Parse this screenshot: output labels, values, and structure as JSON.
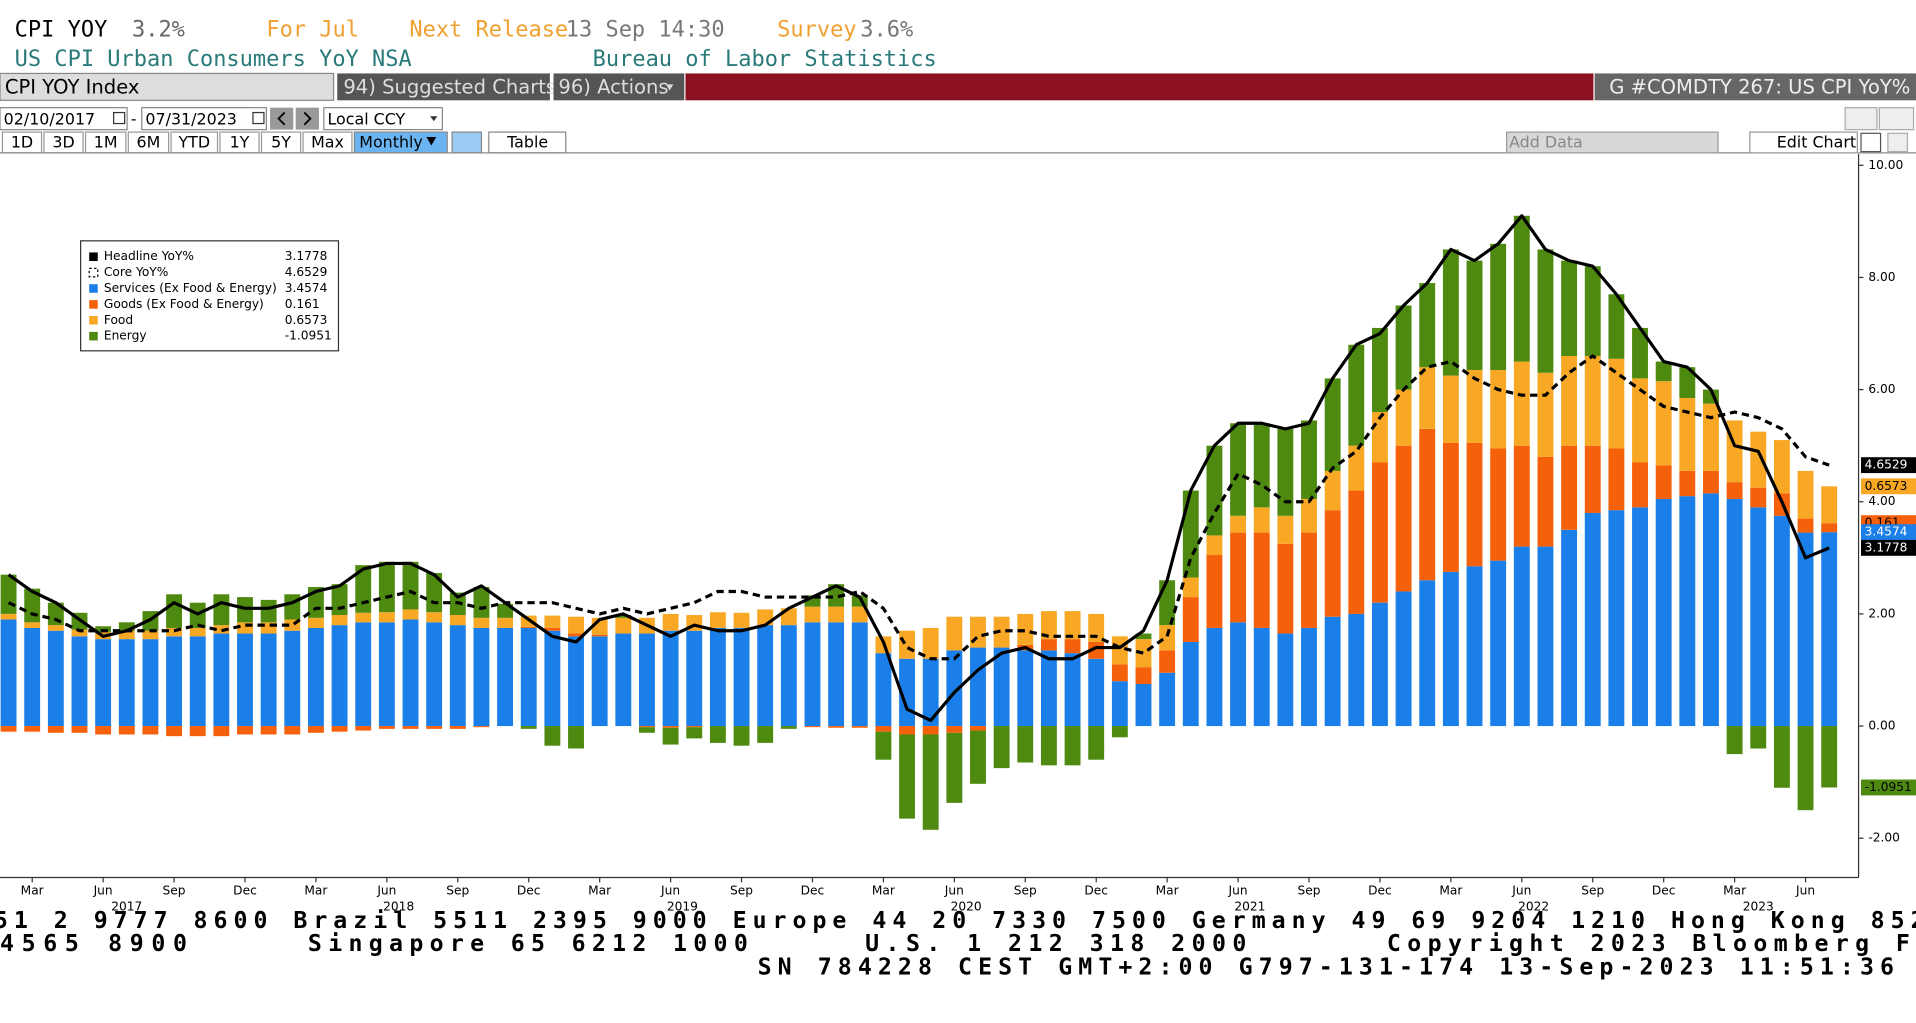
{
  "header": {
    "ticker": "CPI YOY",
    "value": "3.2%",
    "period": "For Jul",
    "next_release_label": "Next Release",
    "next_release": "13 Sep 14:30",
    "survey_label": "Survey",
    "survey": "3.6%",
    "subtitle": "US CPI Urban Consumers YoY NSA",
    "source": "Bureau of Labor Statistics"
  },
  "toolbar": {
    "security": "CPI YOY Index",
    "suggested": "94) Suggested Charts",
    "actions": "96) Actions",
    "chart_code": "G #COMDTY 267: US CPI YoY%",
    "start_date": "02/10/2017",
    "end_date": "07/31/2023",
    "currency": "Local CCY",
    "ranges": [
      "1D",
      "3D",
      "1M",
      "6M",
      "YTD",
      "1Y",
      "5Y",
      "Max"
    ],
    "frequency": "Monthly",
    "table": "Table",
    "add_data": "Add Data",
    "edit_chart": "Edit Chart"
  },
  "chart_data": {
    "type": "bar",
    "stacked": true,
    "legend": "upper left",
    "categories": [
      null,
      "Mar",
      null,
      null,
      "Jun",
      null,
      null,
      "Sep",
      null,
      null,
      "Dec",
      null,
      null,
      "Mar",
      null,
      null,
      "Jun",
      null,
      null,
      "Sep",
      null,
      null,
      "Dec",
      null,
      null,
      "Mar",
      null,
      null,
      "Jun",
      null,
      null,
      "Sep",
      null,
      null,
      "Dec",
      null,
      null,
      "Mar",
      null,
      null,
      "Jun",
      null,
      null,
      "Sep",
      null,
      null,
      "Dec",
      null,
      null,
      "Mar",
      null,
      null,
      "Jun",
      null,
      null,
      "Sep",
      null,
      null,
      "Dec",
      null,
      null,
      "Mar",
      null,
      null,
      "Jun",
      null,
      null,
      "Sep",
      null,
      null,
      "Dec",
      null,
      null,
      "Mar",
      null,
      null,
      "Jun",
      null
    ],
    "years": [
      2017,
      2018,
      2019,
      2020,
      2021,
      2022,
      2023
    ],
    "ylim": [
      -2.7,
      10.2
    ],
    "yticks": [
      {
        "value": -2,
        "label": "-2.00"
      },
      {
        "value": 0,
        "label": "0.00"
      },
      {
        "value": 2,
        "label": "2.00"
      },
      {
        "value": 4,
        "label": "4.00"
      },
      {
        "value": 6,
        "label": "6.00"
      },
      {
        "value": 8,
        "label": "8.00"
      },
      {
        "value": 10,
        "label": "10.00"
      }
    ],
    "series": [
      {
        "name": "Headline YoY%",
        "type": "line",
        "color": "#000000",
        "style": "solid",
        "values": [
          2.7,
          2.4,
          2.2,
          1.9,
          1.6,
          1.7,
          1.9,
          2.2,
          2.0,
          2.2,
          2.1,
          2.1,
          2.2,
          2.4,
          2.5,
          2.8,
          2.9,
          2.9,
          2.7,
          2.3,
          2.5,
          2.2,
          1.9,
          1.6,
          1.5,
          1.9,
          2.0,
          1.8,
          1.6,
          1.8,
          1.7,
          1.7,
          1.8,
          2.1,
          2.3,
          2.5,
          2.3,
          1.5,
          0.3,
          0.1,
          0.6,
          1.0,
          1.3,
          1.4,
          1.2,
          1.2,
          1.4,
          1.4,
          1.7,
          2.6,
          4.2,
          5.0,
          5.4,
          5.4,
          5.3,
          5.4,
          6.2,
          6.8,
          7.0,
          7.5,
          7.9,
          8.5,
          8.3,
          8.6,
          9.1,
          8.5,
          8.3,
          8.2,
          7.7,
          7.1,
          6.5,
          6.4,
          6.0,
          5.0,
          4.9,
          4.0,
          3.0,
          3.1778
        ]
      },
      {
        "name": "Core YoY%",
        "type": "line",
        "color": "#000000",
        "style": "dashed",
        "values": [
          2.2,
          2.0,
          1.9,
          1.7,
          1.7,
          1.7,
          1.7,
          1.7,
          1.8,
          1.7,
          1.8,
          1.8,
          1.8,
          2.1,
          2.1,
          2.2,
          2.3,
          2.4,
          2.2,
          2.2,
          2.1,
          2.2,
          2.2,
          2.2,
          2.1,
          2.0,
          2.1,
          2.0,
          2.1,
          2.2,
          2.4,
          2.4,
          2.3,
          2.3,
          2.3,
          2.3,
          2.4,
          2.1,
          1.4,
          1.2,
          1.2,
          1.6,
          1.7,
          1.7,
          1.6,
          1.6,
          1.6,
          1.4,
          1.3,
          1.6,
          3.0,
          3.8,
          4.5,
          4.3,
          4.0,
          4.0,
          4.6,
          4.9,
          5.5,
          6.0,
          6.4,
          6.5,
          6.2,
          6.0,
          5.9,
          5.9,
          6.3,
          6.6,
          6.3,
          6.0,
          5.7,
          5.6,
          5.5,
          5.6,
          5.5,
          5.3,
          4.8,
          4.6529
        ]
      },
      {
        "name": "Services (Ex Food & Energy)",
        "type": "bar",
        "color": "#1a7fe8",
        "values": [
          1.9,
          1.75,
          1.7,
          1.6,
          1.55,
          1.55,
          1.55,
          1.6,
          1.6,
          1.65,
          1.65,
          1.65,
          1.7,
          1.75,
          1.8,
          1.85,
          1.85,
          1.9,
          1.85,
          1.8,
          1.75,
          1.75,
          1.75,
          1.7,
          1.6,
          1.6,
          1.65,
          1.65,
          1.7,
          1.7,
          1.75,
          1.75,
          1.8,
          1.8,
          1.85,
          1.85,
          1.85,
          1.3,
          1.2,
          1.2,
          1.35,
          1.4,
          1.4,
          1.35,
          1.35,
          1.3,
          1.2,
          0.8,
          0.75,
          0.95,
          1.5,
          1.75,
          1.85,
          1.75,
          1.65,
          1.75,
          1.95,
          2.0,
          2.2,
          2.4,
          2.6,
          2.75,
          2.85,
          2.95,
          3.2,
          3.2,
          3.5,
          3.8,
          3.85,
          3.9,
          4.05,
          4.1,
          4.15,
          4.05,
          3.9,
          3.75,
          3.45,
          3.4574
        ]
      },
      {
        "name": "Goods (Ex Food & Energy)",
        "type": "bar",
        "color": "#f5600a",
        "values": [
          -0.1,
          -0.1,
          -0.12,
          -0.12,
          -0.15,
          -0.15,
          -0.15,
          -0.18,
          -0.18,
          -0.18,
          -0.15,
          -0.15,
          -0.15,
          -0.12,
          -0.1,
          -0.08,
          -0.05,
          -0.05,
          -0.05,
          -0.05,
          -0.02,
          0.0,
          0.02,
          0.05,
          0.05,
          0.03,
          0.0,
          -0.02,
          -0.03,
          -0.02,
          0.0,
          0.0,
          0.0,
          0.0,
          -0.02,
          -0.03,
          -0.03,
          -0.1,
          -0.15,
          -0.15,
          -0.12,
          -0.08,
          0.0,
          0.1,
          0.2,
          0.25,
          0.3,
          0.3,
          0.3,
          0.4,
          0.8,
          1.3,
          1.6,
          1.7,
          1.6,
          1.7,
          1.9,
          2.2,
          2.5,
          2.6,
          2.7,
          2.3,
          2.2,
          2.0,
          1.8,
          1.6,
          1.5,
          1.2,
          1.1,
          0.8,
          0.6,
          0.45,
          0.4,
          0.3,
          0.35,
          0.4,
          0.25,
          0.161
        ]
      },
      {
        "name": "Food",
        "type": "bar",
        "color": "#f9a825",
        "values": [
          0.1,
          0.1,
          0.1,
          0.12,
          0.13,
          0.15,
          0.15,
          0.15,
          0.15,
          0.15,
          0.2,
          0.2,
          0.2,
          0.18,
          0.18,
          0.17,
          0.18,
          0.18,
          0.18,
          0.18,
          0.18,
          0.18,
          0.2,
          0.22,
          0.3,
          0.3,
          0.28,
          0.28,
          0.3,
          0.28,
          0.28,
          0.27,
          0.28,
          0.3,
          0.28,
          0.28,
          0.28,
          0.3,
          0.5,
          0.55,
          0.6,
          0.55,
          0.55,
          0.55,
          0.5,
          0.5,
          0.5,
          0.5,
          0.5,
          0.45,
          0.35,
          0.35,
          0.3,
          0.45,
          0.5,
          0.6,
          0.7,
          0.8,
          0.9,
          1.0,
          1.1,
          1.2,
          1.3,
          1.4,
          1.5,
          1.5,
          1.6,
          1.6,
          1.6,
          1.5,
          1.5,
          1.3,
          1.2,
          1.1,
          1.0,
          0.95,
          0.85,
          0.6573
        ]
      },
      {
        "name": "Energy",
        "type": "bar",
        "color": "#4e8a10",
        "values": [
          0.7,
          0.6,
          0.4,
          0.3,
          0.1,
          0.15,
          0.35,
          0.6,
          0.45,
          0.55,
          0.45,
          0.4,
          0.45,
          0.55,
          0.55,
          0.85,
          0.9,
          0.85,
          0.7,
          0.4,
          0.55,
          0.25,
          -0.05,
          -0.35,
          -0.4,
          0.0,
          0.05,
          -0.1,
          -0.3,
          -0.2,
          -0.3,
          -0.35,
          -0.3,
          -0.05,
          0.2,
          0.4,
          0.2,
          -0.5,
          -1.5,
          -1.7,
          -1.25,
          -0.95,
          -0.75,
          -0.65,
          -0.7,
          -0.7,
          -0.6,
          -0.2,
          0.1,
          0.8,
          1.55,
          1.6,
          1.65,
          1.5,
          1.55,
          1.4,
          1.65,
          1.8,
          1.5,
          1.5,
          1.5,
          2.25,
          1.95,
          2.25,
          2.6,
          2.2,
          1.7,
          1.6,
          1.15,
          0.9,
          0.35,
          0.55,
          0.25,
          -0.5,
          -0.4,
          -1.1,
          -1.5,
          -1.0951
        ]
      }
    ]
  },
  "footer": {
    "line1": "51 2 9777 8600 Brazil 5511 2395 9000 Europe 44 20 7330 7500 Germany 49 69 9204 1210 Hong Kong 852",
    "line2": [
      "4565 8900",
      "Singapore 65 6212 1000",
      "U.S. 1 212 318 2000",
      "Copyright 2023 Bloomberg F"
    ],
    "line3": "SN 784228 CEST GMT+2:00 G797-131-174 13-Sep-2023 11:51:36"
  }
}
